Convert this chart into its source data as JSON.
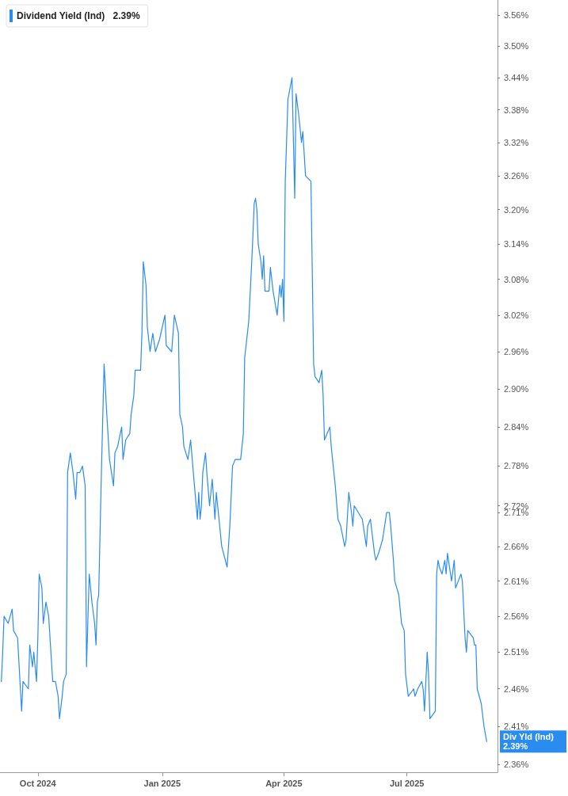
{
  "chart_data": {
    "type": "line",
    "legend": "top left",
    "log": "y",
    "marker": "none",
    "line_style": "solid",
    "annotations": [
      "2.39%",
      "Div Yld (Ind) 2.39%"
    ],
    "xlim": [
      "2024-09-03",
      "2025-09-06"
    ],
    "xticks": [
      {
        "value": "2024-10-01",
        "label": "Oct 2024"
      },
      {
        "value": "2025-01-01",
        "label": "Jan 2025"
      },
      {
        "value": "2025-04-01",
        "label": "Apr 2025"
      },
      {
        "value": "2025-07-01",
        "label": "Jul 2025"
      }
    ],
    "ylim": [
      2.35,
      3.59
    ],
    "yticks": [
      {
        "value": 2.36,
        "label": "2.36%"
      },
      {
        "value": 2.41,
        "label": "2.41%"
      },
      {
        "value": 2.46,
        "label": "2.46%"
      },
      {
        "value": 2.51,
        "label": "2.51%"
      },
      {
        "value": 2.56,
        "label": "2.56%"
      },
      {
        "value": 2.61,
        "label": "2.61%"
      },
      {
        "value": 2.66,
        "label": "2.66%"
      },
      {
        "value": 2.71,
        "label": "2.71%"
      },
      {
        "value": 2.72,
        "label": "2.72%"
      },
      {
        "value": 2.78,
        "label": "2.78%"
      },
      {
        "value": 2.84,
        "label": "2.84%"
      },
      {
        "value": 2.9,
        "label": "2.90%"
      },
      {
        "value": 2.96,
        "label": "2.96%"
      },
      {
        "value": 3.02,
        "label": "3.02%"
      },
      {
        "value": 3.08,
        "label": "3.08%"
      },
      {
        "value": 3.14,
        "label": "3.14%"
      },
      {
        "value": 3.2,
        "label": "3.20%"
      },
      {
        "value": 3.26,
        "label": "3.26%"
      },
      {
        "value": 3.32,
        "label": "3.32%"
      },
      {
        "value": 3.38,
        "label": "3.38%"
      },
      {
        "value": 3.44,
        "label": "3.44%"
      },
      {
        "value": 3.5,
        "label": "3.50%"
      },
      {
        "value": 3.56,
        "label": "3.56%"
      }
    ],
    "x": [
      "2024-09-04",
      "2024-09-05",
      "2024-09-06",
      "2024-09-09",
      "2024-09-12",
      "2024-09-13",
      "2024-09-16",
      "2024-09-19",
      "2024-09-20",
      "2024-09-24",
      "2024-09-25",
      "2024-09-27",
      "2024-09-28",
      "2024-09-30",
      "2024-10-01",
      "2024-10-02",
      "2024-10-04",
      "2024-10-05",
      "2024-10-07",
      "2024-10-09",
      "2024-10-10",
      "2024-10-12",
      "2024-10-14",
      "2024-10-16",
      "2024-10-17",
      "2024-10-19",
      "2024-10-20",
      "2024-10-22",
      "2024-10-23",
      "2024-10-25",
      "2024-10-27",
      "2024-10-29",
      "2024-10-30",
      "2024-11-01",
      "2024-11-03",
      "2024-11-05",
      "2024-11-06",
      "2024-11-08",
      "2024-11-10",
      "2024-11-12",
      "2024-11-13",
      "2024-11-14",
      "2024-11-15",
      "2024-11-17",
      "2024-11-19",
      "2024-11-21",
      "2024-11-23",
      "2024-11-26",
      "2024-11-27",
      "2024-11-29",
      "2024-12-02",
      "2024-12-03",
      "2024-12-05",
      "2024-12-08",
      "2024-12-09",
      "2024-12-11",
      "2024-12-12",
      "2024-12-16",
      "2024-12-17",
      "2024-12-18",
      "2024-12-20",
      "2024-12-21",
      "2024-12-23",
      "2024-12-25",
      "2024-12-27",
      "2024-12-30",
      "2025-01-03",
      "2025-01-04",
      "2025-01-08",
      "2025-01-10",
      "2025-01-13",
      "2025-01-14",
      "2025-01-16",
      "2025-01-17",
      "2025-01-20",
      "2025-01-22",
      "2025-01-24",
      "2025-01-27",
      "2025-01-28",
      "2025-01-29",
      "2025-01-30",
      "2025-01-31",
      "2025-02-02",
      "2025-02-03",
      "2025-02-05",
      "2025-02-06",
      "2025-02-07",
      "2025-02-09",
      "2025-02-10",
      "2025-02-12",
      "2025-02-14",
      "2025-02-18",
      "2025-02-20",
      "2025-02-22",
      "2025-02-24",
      "2025-02-28",
      "2025-03-02",
      "2025-03-03",
      "2025-03-06",
      "2025-03-08",
      "2025-03-09",
      "2025-03-10",
      "2025-03-11",
      "2025-03-12",
      "2025-03-13",
      "2025-03-15",
      "2025-03-16",
      "2025-03-17",
      "2025-03-18",
      "2025-03-21",
      "2025-03-22",
      "2025-03-24",
      "2025-03-27",
      "2025-03-29",
      "2025-03-30",
      "2025-03-31",
      "2025-04-01",
      "2025-04-02",
      "2025-04-04",
      "2025-04-07",
      "2025-04-09",
      "2025-04-10",
      "2025-04-12",
      "2025-04-14",
      "2025-04-15",
      "2025-04-17",
      "2025-04-21",
      "2025-04-23",
      "2025-04-24",
      "2025-04-27",
      "2025-04-29",
      "2025-04-30",
      "2025-05-01",
      "2025-05-03",
      "2025-05-05",
      "2025-05-06",
      "2025-05-09",
      "2025-05-11",
      "2025-05-13",
      "2025-05-16",
      "2025-05-17",
      "2025-05-19",
      "2025-05-21",
      "2025-05-22",
      "2025-05-23",
      "2025-05-26",
      "2025-05-29",
      "2025-06-01",
      "2025-06-02",
      "2025-06-04",
      "2025-06-07",
      "2025-06-08",
      "2025-06-10",
      "2025-06-13",
      "2025-06-16",
      "2025-06-18",
      "2025-06-19",
      "2025-06-21",
      "2025-06-22",
      "2025-06-25",
      "2025-06-27",
      "2025-06-29",
      "2025-06-30",
      "2025-07-02",
      "2025-07-06",
      "2025-07-07",
      "2025-07-09",
      "2025-07-12",
      "2025-07-13",
      "2025-07-14",
      "2025-07-16",
      "2025-07-17",
      "2025-07-18",
      "2025-07-22",
      "2025-07-23",
      "2025-07-24",
      "2025-07-25",
      "2025-07-27",
      "2025-07-29",
      "2025-07-30",
      "2025-07-31",
      "2025-08-03",
      "2025-08-05",
      "2025-08-06",
      "2025-08-10",
      "2025-08-11",
      "2025-08-13",
      "2025-08-14",
      "2025-08-15",
      "2025-08-19",
      "2025-08-20",
      "2025-08-21",
      "2025-08-22",
      "2025-08-25",
      "2025-08-27",
      "2025-08-29"
    ],
    "series": [
      {
        "name": "Dividend Yield (Ind)",
        "color": "#2b8cf0",
        "values": [
          2.47,
          2.51,
          2.56,
          2.55,
          2.57,
          2.54,
          2.53,
          2.43,
          2.47,
          2.46,
          2.52,
          2.49,
          2.51,
          2.47,
          2.53,
          2.62,
          2.6,
          2.55,
          2.58,
          2.56,
          2.53,
          2.47,
          2.47,
          2.45,
          2.42,
          2.45,
          2.47,
          2.48,
          2.77,
          2.8,
          2.77,
          2.73,
          2.77,
          2.77,
          2.78,
          2.75,
          2.49,
          2.62,
          2.58,
          2.55,
          2.52,
          2.58,
          2.59,
          2.77,
          2.94,
          2.86,
          2.79,
          2.75,
          2.8,
          2.81,
          2.84,
          2.79,
          2.82,
          2.83,
          2.86,
          2.89,
          2.93,
          2.93,
          2.99,
          3.11,
          3.07,
          3.0,
          2.96,
          2.99,
          2.96,
          2.98,
          3.02,
          2.97,
          2.96,
          3.02,
          2.99,
          2.86,
          2.84,
          2.81,
          2.79,
          2.82,
          2.77,
          2.7,
          2.74,
          2.7,
          2.72,
          2.77,
          2.8,
          2.77,
          2.72,
          2.74,
          2.76,
          2.7,
          2.74,
          2.7,
          2.66,
          2.63,
          2.69,
          2.78,
          2.79,
          2.79,
          2.83,
          2.95,
          3.01,
          3.1,
          3.15,
          3.21,
          3.22,
          3.2,
          3.14,
          3.11,
          3.08,
          3.12,
          3.06,
          3.06,
          3.1,
          3.06,
          3.02,
          3.07,
          3.05,
          3.08,
          3.01,
          3.25,
          3.4,
          3.44,
          3.22,
          3.41,
          3.37,
          3.32,
          3.34,
          3.26,
          3.25,
          2.94,
          2.92,
          2.91,
          2.93,
          2.89,
          2.82,
          2.83,
          2.84,
          2.81,
          2.75,
          2.7,
          2.69,
          2.66,
          2.67,
          2.74,
          2.71,
          2.69,
          2.72,
          2.71,
          2.7,
          2.66,
          2.69,
          2.7,
          2.65,
          2.64,
          2.65,
          2.67,
          2.71,
          2.71,
          2.69,
          2.64,
          2.61,
          2.59,
          2.55,
          2.54,
          2.48,
          2.45,
          2.46,
          2.45,
          2.46,
          2.47,
          2.46,
          2.43,
          2.51,
          2.48,
          2.42,
          2.43,
          2.62,
          2.64,
          2.63,
          2.62,
          2.64,
          2.62,
          2.65,
          2.61,
          2.64,
          2.6,
          2.62,
          2.61,
          2.53,
          2.51,
          2.54,
          2.53,
          2.52,
          2.52,
          2.46,
          2.44,
          2.41,
          2.39
        ]
      }
    ]
  }
}
